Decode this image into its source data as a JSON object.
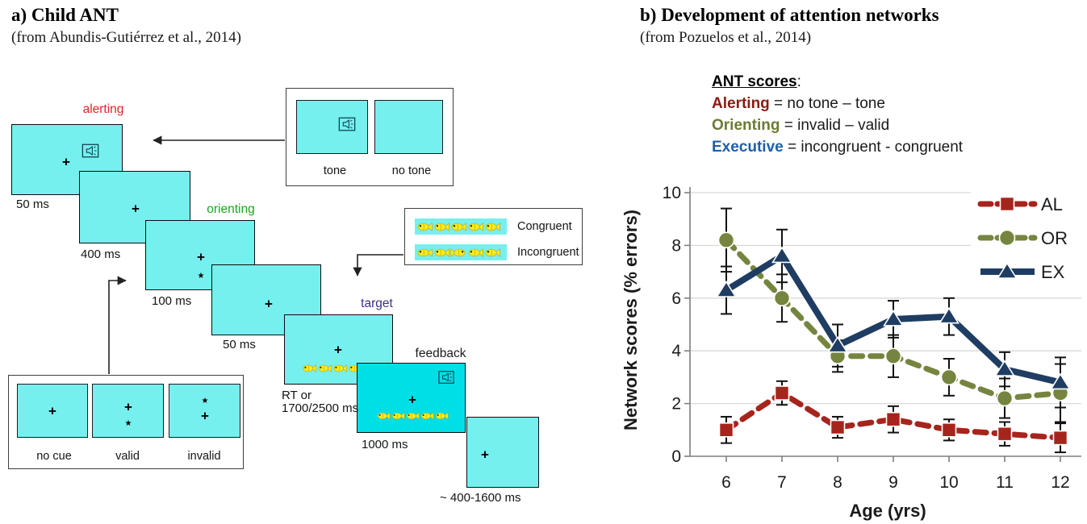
{
  "appearance": {
    "cyan": "#76EFEF",
    "cyan-deep": "#00DFE6",
    "grid-color": "#D9D9D9",
    "axis-color": "#7F7F7F"
  },
  "panel_a": {
    "title": "a) Child ANT",
    "source": "(from Abundis-Gutiérrez et al., 2014)",
    "fixation_symbol": "+",
    "cue_symbol": "★",
    "fish_per_row": 5,
    "phase_labels": {
      "alerting": "alerting",
      "orienting": "orienting",
      "target": "target",
      "feedback": "feedback"
    },
    "phase_colors": {
      "alerting": "#E4222B",
      "orienting": "#1EA41E",
      "target": "#3A2F8F",
      "feedback": "#1A1A1A"
    },
    "durations": {
      "alerting": "50 ms",
      "fixation1": "400 ms",
      "cue": "100 ms",
      "fixation2": "50 ms",
      "target_line1": "RT or",
      "target_line2": "1700/2500 ms",
      "feedback": "1000 ms",
      "iti": "~ 400-1600 ms"
    },
    "tone_box": {
      "tone": "tone",
      "no_tone": "no tone"
    },
    "cue_box": {
      "no_cue": "no cue",
      "valid": "valid",
      "invalid": "invalid"
    },
    "flanker_box": {
      "congruent": "Congruent",
      "incongruent": "Incongruent"
    }
  },
  "panel_b": {
    "title": "b) Development of attention networks",
    "source": "(from Pozuelos et al., 2014)",
    "ant_scores": {
      "heading": "ANT scores",
      "colon": ":",
      "lines": [
        {
          "term": "Alerting",
          "rest": " = no tone – tone",
          "color": "#8C1A11"
        },
        {
          "term": "Orienting",
          "rest": " = invalid – valid",
          "color": "#697B35"
        },
        {
          "term": "Executive",
          "rest": " = incongruent - congruent",
          "color": "#1F5FA8"
        }
      ]
    }
  },
  "chart_data": {
    "type": "line",
    "title": "",
    "xlabel": "Age (yrs)",
    "ylabel": "Network scores (% errors)",
    "x": [
      6,
      7,
      8,
      9,
      10,
      11,
      12
    ],
    "ylim": [
      0,
      10
    ],
    "yticks": [
      0,
      2,
      4,
      6,
      8,
      10
    ],
    "grid": true,
    "legend_position": "top-right",
    "series": [
      {
        "name": "AL",
        "color": "#A7241C",
        "marker": "square",
        "line": "dashed",
        "values": [
          1.0,
          2.4,
          1.1,
          1.4,
          1.0,
          0.85,
          0.7
        ],
        "errors": [
          0.5,
          0.45,
          0.4,
          0.5,
          0.4,
          0.45,
          0.55
        ]
      },
      {
        "name": "OR",
        "color": "#75853F",
        "marker": "circle",
        "line": "dashed",
        "values": [
          8.2,
          6.0,
          3.8,
          3.8,
          3.0,
          2.2,
          2.4
        ],
        "errors": [
          1.2,
          0.9,
          0.6,
          0.8,
          0.7,
          0.75,
          1.1
        ]
      },
      {
        "name": "EX",
        "color": "#1F3D62",
        "marker": "triangle",
        "line": "solid",
        "values": [
          6.3,
          7.6,
          4.2,
          5.2,
          5.3,
          3.3,
          2.8
        ],
        "errors": [
          0.9,
          1.0,
          0.8,
          0.7,
          0.7,
          0.65,
          0.95
        ]
      }
    ]
  }
}
